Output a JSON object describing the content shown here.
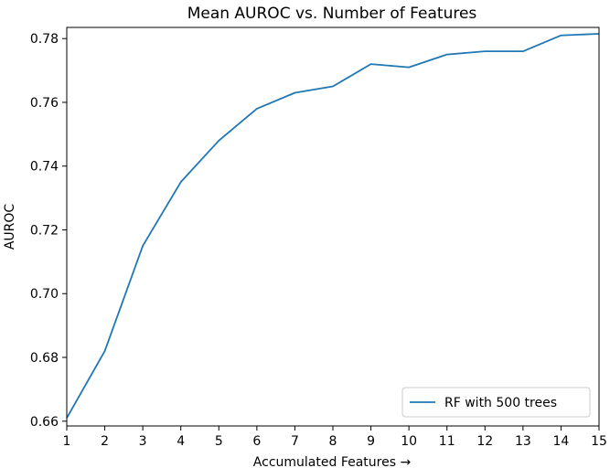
{
  "chart_data": {
    "type": "line",
    "title": "Mean AUROC vs. Number of Features",
    "xlabel": "Accumulated Features →",
    "ylabel": "AUROC",
    "xlim": [
      1,
      15
    ],
    "ylim": [
      0.6585,
      0.7835
    ],
    "x_ticks": [
      1,
      2,
      3,
      4,
      5,
      6,
      7,
      8,
      9,
      10,
      11,
      12,
      13,
      14,
      15
    ],
    "y_ticks": [
      0.66,
      0.68,
      0.7,
      0.72,
      0.74,
      0.76,
      0.78
    ],
    "y_tick_labels": [
      "0.66",
      "0.68",
      "0.70",
      "0.72",
      "0.74",
      "0.76",
      "0.78"
    ],
    "grid": false,
    "legend_position": "lower-right",
    "series": [
      {
        "name": "RF with 500 trees",
        "color": "#1f77b4",
        "x": [
          1,
          2,
          3,
          4,
          5,
          6,
          7,
          8,
          9,
          10,
          11,
          12,
          13,
          14,
          15
        ],
        "y": [
          0.661,
          0.682,
          0.715,
          0.735,
          0.748,
          0.758,
          0.763,
          0.765,
          0.772,
          0.771,
          0.775,
          0.776,
          0.776,
          0.781,
          0.7815
        ]
      }
    ]
  }
}
